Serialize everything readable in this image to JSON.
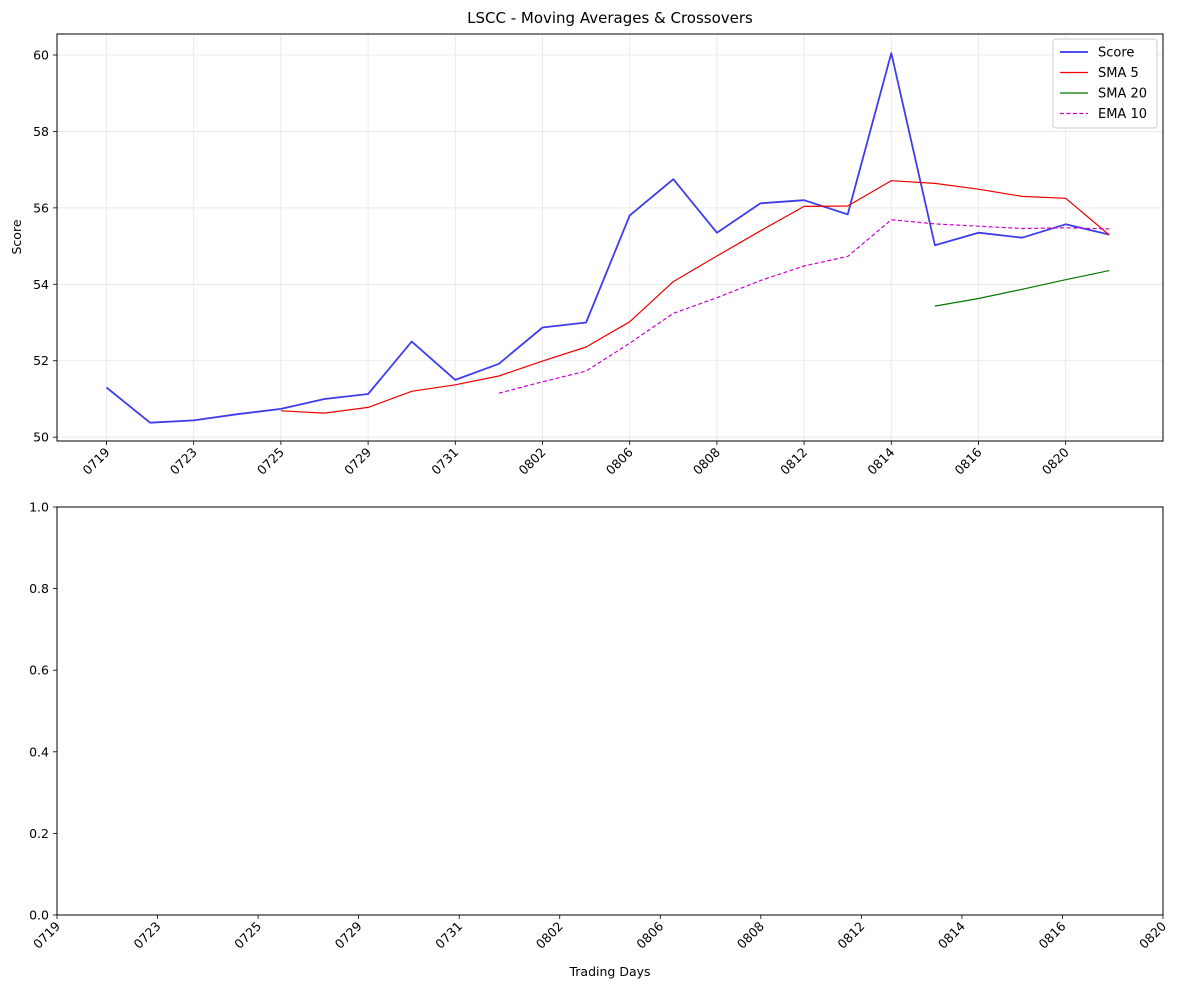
{
  "chart_data": [
    {
      "type": "line",
      "title": "LSCC - Moving Averages & Crossovers",
      "xlabel": "",
      "ylabel": "Score",
      "ylim": [
        49.9,
        60.55
      ],
      "yticks": [
        "50",
        "52",
        "54",
        "56",
        "58",
        "60"
      ],
      "xticks": [
        "0719",
        "0723",
        "0725",
        "0729",
        "0731",
        "0802",
        "0806",
        "0808",
        "0812",
        "0814",
        "0816",
        "0820"
      ],
      "grid": true,
      "legend_position": "top-right",
      "colors": {
        "Score": "#3333ee",
        "SMA 5": "#ee0000",
        "SMA 20": "#007700",
        "EMA 10": "#cc00cc"
      },
      "series": [
        {
          "name": "Score",
          "values": [
            51.3,
            50.38,
            50.44,
            50.6,
            50.74,
            51.0,
            51.13,
            52.5,
            51.5,
            51.92,
            52.87,
            53.0,
            55.8,
            56.75,
            55.35,
            56.12,
            56.2,
            55.83,
            60.05,
            55.02,
            55.35,
            55.22,
            55.57,
            55.3
          ]
        },
        {
          "name": "SMA 5",
          "values": [
            null,
            null,
            null,
            null,
            50.69,
            50.63,
            50.78,
            51.2,
            51.37,
            51.6,
            51.99,
            52.36,
            53.02,
            54.07,
            54.74,
            55.4,
            56.04,
            56.05,
            56.71,
            56.64,
            56.49,
            56.3,
            56.25,
            55.29
          ]
        },
        {
          "name": "SMA 20",
          "values": [
            null,
            null,
            null,
            null,
            null,
            null,
            null,
            null,
            null,
            null,
            null,
            null,
            null,
            null,
            null,
            null,
            null,
            null,
            null,
            53.43,
            53.63,
            53.87,
            54.12,
            54.36
          ]
        },
        {
          "name": "EMA 10",
          "values": [
            null,
            null,
            null,
            null,
            null,
            null,
            null,
            null,
            null,
            51.15,
            51.45,
            51.73,
            52.46,
            53.24,
            53.65,
            54.1,
            54.48,
            54.73,
            55.69,
            55.58,
            55.52,
            55.46,
            55.48,
            55.45
          ]
        }
      ]
    },
    {
      "type": "line",
      "title": "",
      "xlabel": "Trading Days",
      "ylabel": "",
      "ylim": [
        0.0,
        1.0
      ],
      "yticks": [
        "0.0",
        "0.2",
        "0.4",
        "0.6",
        "0.8",
        "1.0"
      ],
      "xticks": [
        "0719",
        "0723",
        "0725",
        "0729",
        "0731",
        "0802",
        "0806",
        "0808",
        "0812",
        "0814",
        "0816",
        "0820"
      ],
      "grid": false,
      "series": []
    }
  ]
}
